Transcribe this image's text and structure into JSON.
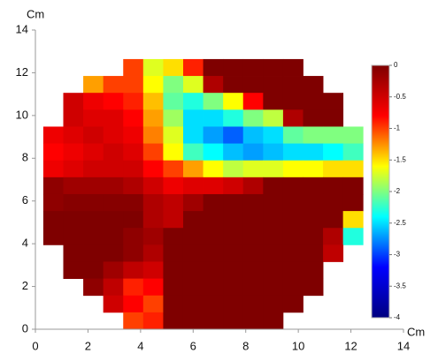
{
  "chart_data": {
    "type": "heatmap",
    "x_label": "Cm",
    "y_label": "Cm",
    "x": [
      0.68,
      1.44,
      2.2,
      2.96,
      3.72,
      4.48,
      5.24,
      6.0,
      6.76,
      7.52,
      8.28,
      9.04,
      9.8,
      10.56,
      11.32,
      12.08
    ],
    "y": [
      12.245,
      11.455,
      10.665,
      9.875,
      9.085,
      8.295,
      7.505,
      6.715,
      5.925,
      5.135,
      4.345,
      3.555,
      2.765,
      1.975,
      1.185,
      0.395
    ],
    "values": [
      [
        null,
        null,
        null,
        null,
        -1,
        -1.7,
        -1.5,
        -0.9,
        0,
        0,
        0,
        0,
        0,
        null,
        null,
        null
      ],
      [
        null,
        null,
        -1.3,
        -1,
        -1,
        -1.6,
        -2,
        -1.7,
        -0.3,
        0,
        0,
        0,
        0,
        0,
        null,
        null
      ],
      [
        null,
        -0.5,
        -0.7,
        -0.8,
        -0.9,
        -1.4,
        -2.1,
        -2.3,
        -2,
        -1.6,
        -0.8,
        0,
        0,
        0,
        0,
        null
      ],
      [
        null,
        -0.5,
        -0.6,
        -0.6,
        -0.8,
        -1.3,
        -1.9,
        -2.5,
        -2.5,
        -2.3,
        -2,
        -1.8,
        -0.3,
        0,
        0,
        null
      ],
      [
        -0.7,
        -0.6,
        -0.5,
        -0.6,
        -0.7,
        -1.2,
        -1.7,
        -2.5,
        -2.7,
        -2.9,
        -2.6,
        -2.5,
        -2.1,
        -2,
        -2,
        -2
      ],
      [
        -0.8,
        -0.7,
        -0.6,
        -0.5,
        -0.6,
        -1,
        -1.6,
        -2.2,
        -2.4,
        -2.6,
        -2.7,
        -2.6,
        -2.5,
        -2.5,
        -2.4,
        -2.2
      ],
      [
        -0.7,
        -0.6,
        -0.5,
        -0.5,
        -0.5,
        -0.8,
        -1,
        -1.3,
        -1.6,
        -1.8,
        -1.7,
        -1.7,
        -1.6,
        -1.6,
        -1.5,
        -1.5
      ],
      [
        -0.1,
        -0.2,
        -0.2,
        -0.2,
        -0.3,
        -0.5,
        -0.7,
        -0.6,
        -0.6,
        -0.5,
        -0.3,
        0,
        0,
        0,
        0,
        0
      ],
      [
        -0.1,
        -0.05,
        -0.05,
        -0.05,
        -0.05,
        -0.3,
        -0.4,
        -0.2,
        0,
        0,
        0,
        0,
        0,
        0,
        0,
        0
      ],
      [
        0,
        0,
        0,
        0,
        0,
        -0.3,
        -0.4,
        0,
        0,
        0,
        0,
        0,
        0,
        0,
        0,
        -1.5
      ],
      [
        0,
        0,
        0,
        0,
        -0.1,
        -0.2,
        0,
        0,
        0,
        0,
        0,
        0,
        0,
        0,
        -0.3,
        -2.3
      ],
      [
        null,
        0,
        0,
        0,
        -0.1,
        -0.3,
        0,
        0,
        0,
        0,
        0,
        0,
        0,
        0,
        -0.4,
        null
      ],
      [
        null,
        0,
        0,
        -0.2,
        -0.4,
        -0.5,
        0,
        0,
        0,
        0,
        0,
        0,
        0,
        0,
        null,
        null
      ],
      [
        null,
        null,
        -0.1,
        -0.4,
        -0.9,
        -0.8,
        0,
        0,
        0,
        0,
        0,
        0,
        0,
        0,
        null,
        null
      ],
      [
        null,
        null,
        null,
        -0.5,
        -0.8,
        -1,
        0,
        0,
        0,
        0,
        0,
        0,
        0,
        null,
        null,
        null
      ],
      [
        null,
        null,
        null,
        null,
        -1,
        -0.9,
        0,
        0,
        0,
        0,
        0,
        0,
        null,
        null,
        null,
        null
      ]
    ],
    "xlim": [
      0,
      14
    ],
    "ylim": [
      0,
      14
    ],
    "xticks": [
      0,
      2,
      4,
      6,
      8,
      10,
      12,
      14
    ],
    "yticks": [
      0,
      2,
      4,
      6,
      8,
      10,
      12,
      14
    ],
    "clim": [
      -4,
      0
    ],
    "cticks": [
      0,
      -0.5,
      -1,
      -1.5,
      -2,
      -2.5,
      -3,
      -3.5,
      -4
    ],
    "colormap": [
      "#00007f",
      "#0000ff",
      "#00ffff",
      "#ffff00",
      "#ff0000",
      "#7f0000"
    ]
  }
}
